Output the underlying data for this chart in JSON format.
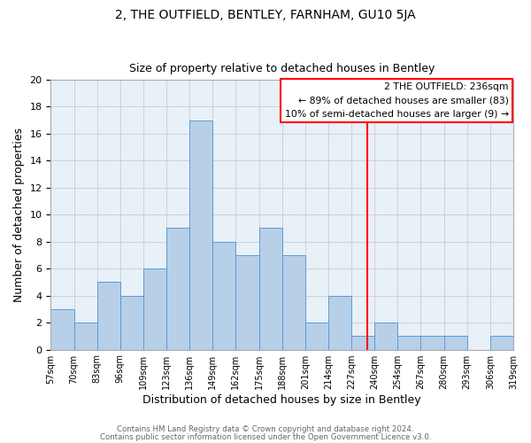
{
  "title": "2, THE OUTFIELD, BENTLEY, FARNHAM, GU10 5JA",
  "subtitle": "Size of property relative to detached houses in Bentley",
  "xlabel": "Distribution of detached houses by size in Bentley",
  "ylabel": "Number of detached properties",
  "bin_labels": [
    "57sqm",
    "70sqm",
    "83sqm",
    "96sqm",
    "109sqm",
    "123sqm",
    "136sqm",
    "149sqm",
    "162sqm",
    "175sqm",
    "188sqm",
    "201sqm",
    "214sqm",
    "227sqm",
    "240sqm",
    "254sqm",
    "267sqm",
    "280sqm",
    "293sqm",
    "306sqm",
    "319sqm"
  ],
  "bar_heights": [
    3,
    2,
    5,
    4,
    6,
    9,
    17,
    8,
    7,
    9,
    7,
    2,
    4,
    1,
    2,
    1,
    1,
    1,
    0,
    1
  ],
  "bar_color": "#b8cfe8",
  "bar_edgecolor": "#5b9bd5",
  "ylim": [
    0,
    20
  ],
  "yticks": [
    0,
    2,
    4,
    6,
    8,
    10,
    12,
    14,
    16,
    18,
    20
  ],
  "annotation_title": "2 THE OUTFIELD: 236sqm",
  "annotation_line1": "← 89% of detached houses are smaller (83)",
  "annotation_line2": "10% of semi-detached houses are larger (9) →",
  "footer_line1": "Contains HM Land Registry data © Crown copyright and database right 2024.",
  "footer_line2": "Contains public sector information licensed under the Open Government Licence v3.0.",
  "background_color": "#ffffff",
  "grid_color": "#cccccc",
  "vline_color": "red",
  "annotation_edgecolor": "red"
}
